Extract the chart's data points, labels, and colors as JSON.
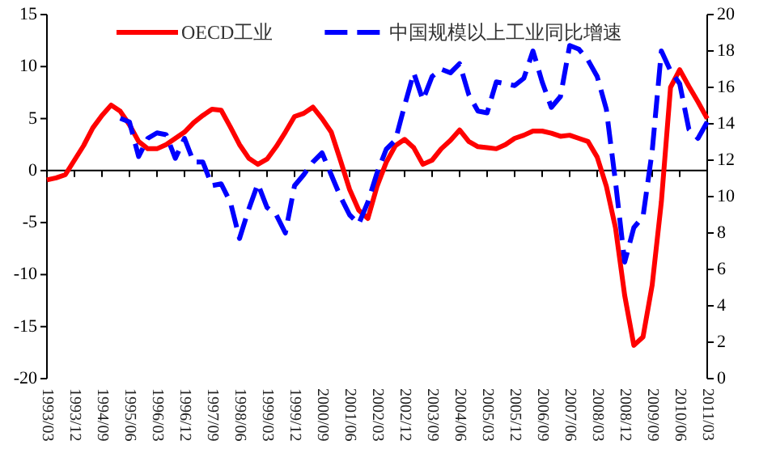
{
  "chart_data": {
    "type": "line",
    "categories": [
      "1993/03",
      null,
      null,
      "1993/12",
      null,
      null,
      "1994/09",
      null,
      null,
      "1995/06",
      null,
      null,
      "1996/03",
      null,
      null,
      "1996/12",
      null,
      null,
      "1997/09",
      null,
      null,
      "1998/06",
      null,
      null,
      "1999/03",
      null,
      null,
      "1999/12",
      null,
      null,
      "2000/09",
      null,
      null,
      "2001/06",
      null,
      null,
      "2002/03",
      null,
      null,
      "2002/12",
      null,
      null,
      "2003/09",
      null,
      null,
      "2004/06",
      null,
      null,
      "2005/03",
      null,
      null,
      "2005/12",
      null,
      null,
      "2006/09",
      null,
      null,
      "2007/06",
      null,
      null,
      "2008/03",
      null,
      null,
      "2008/12",
      null,
      null,
      "2009/09",
      null,
      null,
      "2010/06",
      null,
      null,
      "2011/03"
    ],
    "series": [
      {
        "name": "OECD工业",
        "color": "#ff0000",
        "line_style": "solid",
        "values": [
          -0.9,
          -0.7,
          -0.4,
          1.0,
          2.4,
          4.1,
          5.3,
          6.3,
          5.7,
          4.4,
          2.8,
          2.1,
          2.1,
          2.5,
          3.1,
          3.7,
          4.6,
          5.3,
          5.9,
          5.8,
          4.2,
          2.5,
          1.2,
          0.6,
          1.1,
          2.3,
          3.7,
          5.2,
          5.5,
          6.1,
          5.0,
          3.7,
          1.0,
          -1.8,
          -3.8,
          -4.6,
          -1.5,
          0.8,
          2.4,
          3.0,
          2.2,
          0.6,
          1.0,
          2.1,
          2.9,
          3.9,
          2.8,
          2.3,
          2.2,
          2.1,
          2.5,
          3.1,
          3.4,
          3.8,
          3.8,
          3.6,
          3.3,
          3.4,
          3.1,
          2.8,
          1.3,
          -1.5,
          -5.5,
          -12.0,
          -16.8,
          -16.0,
          -11.0,
          -3.0,
          8.0,
          9.7,
          8.1,
          6.6,
          5.0
        ]
      },
      {
        "name": "中国规模以上工业同比增速",
        "color": "#0000ff",
        "line_style": "dashed",
        "axis": "y2",
        "values": [
          null,
          null,
          null,
          null,
          null,
          null,
          null,
          null,
          14.3,
          14.1,
          12.2,
          13.2,
          13.5,
          13.4,
          12.1,
          13.2,
          11.9,
          11.9,
          10.6,
          10.7,
          9.7,
          7.7,
          9.3,
          10.7,
          9.4,
          9.0,
          8.0,
          10.6,
          11.2,
          11.9,
          12.4,
          11.2,
          10.0,
          9.0,
          8.5,
          9.7,
          11.3,
          12.6,
          13.1,
          15.0,
          16.8,
          15.3,
          16.6,
          17.0,
          16.8,
          17.3,
          15.6,
          14.7,
          14.6,
          16.3,
          16.2,
          16.1,
          16.5,
          18.0,
          16.3,
          14.9,
          15.5,
          18.3,
          18.1,
          17.5,
          16.6,
          14.8,
          10.8,
          6.4,
          8.3,
          8.9,
          12.5,
          18.0,
          16.9,
          16.2,
          13.7,
          13.2,
          14.1
        ]
      }
    ],
    "ylim": [
      -20,
      15
    ],
    "yticks": [
      -20,
      -15,
      -10,
      -5,
      0,
      5,
      10,
      15
    ],
    "y2lim": [
      0,
      20
    ],
    "y2ticks": [
      0,
      2,
      4,
      6,
      8,
      10,
      12,
      14,
      16,
      18,
      20
    ],
    "legend": "top"
  }
}
